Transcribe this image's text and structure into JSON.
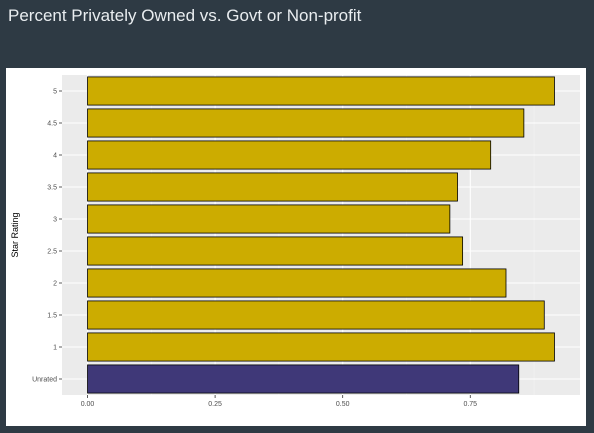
{
  "header": {
    "title": "Percent Privately Owned vs. Govt or Non-profit"
  },
  "chart_data": {
    "type": "bar",
    "orientation": "horizontal",
    "title": "",
    "xlabel": "",
    "ylabel": "Star Rating",
    "categories": [
      "Unrated",
      "1",
      "1.5",
      "2",
      "2.5",
      "3",
      "3.5",
      "4",
      "4.5",
      "5"
    ],
    "values": [
      0.845,
      0.915,
      0.895,
      0.82,
      0.735,
      0.71,
      0.725,
      0.79,
      0.855,
      0.915
    ],
    "bar_colors": [
      "#3f3878",
      "#ccac00",
      "#ccac00",
      "#ccac00",
      "#ccac00",
      "#ccac00",
      "#ccac00",
      "#ccac00",
      "#ccac00",
      "#ccac00"
    ],
    "bar_outline_color": "#000000",
    "xlim": [
      -0.05,
      0.965
    ],
    "x_ticks": [
      0.0,
      0.25,
      0.5,
      0.75
    ],
    "x_tick_labels": [
      "0.00",
      "0.25",
      "0.50",
      "0.75"
    ],
    "grid": true,
    "panel_background": "#ebebeb",
    "legend": "none"
  }
}
